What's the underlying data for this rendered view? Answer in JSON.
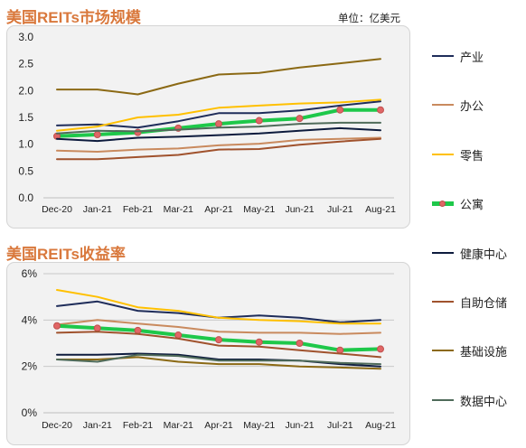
{
  "title_top": "美国REITs市场规模",
  "unit_label": "单位：亿美元",
  "title_bottom": "美国REITs收益率",
  "legend": [
    {
      "name": "产业",
      "color": "#1f2d5a"
    },
    {
      "name": "办公",
      "color": "#c98a5e"
    },
    {
      "name": "零售",
      "color": "#ffc000"
    },
    {
      "name": "公寓",
      "color": "#1ec84a"
    },
    {
      "name": "健康中心",
      "color": "#0d1b3d"
    },
    {
      "name": "自助仓储",
      "color": "#a0522d"
    },
    {
      "name": "基础设施",
      "color": "#8b6914"
    },
    {
      "name": "数据中心",
      "color": "#4f6b5a"
    }
  ],
  "chart_data": [
    {
      "type": "line",
      "title": "美国REITs市场规模",
      "categories": [
        "Dec-20",
        "Jan-21",
        "Feb-21",
        "Mar-21",
        "Apr-21",
        "May-21",
        "Jun-21",
        "Jul-21",
        "Aug-21"
      ],
      "ylim": [
        0,
        3.0
      ],
      "yticks": [
        "0.0",
        "0.5",
        "1.0",
        "1.5",
        "2.0",
        "2.5",
        "3.0"
      ],
      "grid": false,
      "series": [
        {
          "name": "产业",
          "color": "#1f2d5a",
          "width": 2,
          "values": [
            1.35,
            1.37,
            1.31,
            1.43,
            1.58,
            1.58,
            1.63,
            1.72,
            1.8
          ]
        },
        {
          "name": "办公",
          "color": "#c98a5e",
          "width": 2,
          "values": [
            0.88,
            0.86,
            0.9,
            0.92,
            0.98,
            1.01,
            1.08,
            1.1,
            1.12
          ]
        },
        {
          "name": "零售",
          "color": "#ffc000",
          "width": 2,
          "values": [
            1.25,
            1.33,
            1.5,
            1.55,
            1.68,
            1.72,
            1.76,
            1.78,
            1.83
          ]
        },
        {
          "name": "公寓",
          "color": "#1ec84a",
          "width": 4,
          "marker": true,
          "values": [
            1.15,
            1.18,
            1.22,
            1.3,
            1.38,
            1.44,
            1.48,
            1.64,
            1.64
          ]
        },
        {
          "name": "健康中心",
          "color": "#0d1b3d",
          "width": 2,
          "values": [
            1.1,
            1.06,
            1.12,
            1.14,
            1.17,
            1.2,
            1.25,
            1.3,
            1.26
          ]
        },
        {
          "name": "自助仓储",
          "color": "#a0522d",
          "width": 2,
          "values": [
            0.72,
            0.72,
            0.76,
            0.8,
            0.9,
            0.91,
            0.99,
            1.05,
            1.1
          ]
        },
        {
          "name": "基础设施",
          "color": "#8b6914",
          "width": 2,
          "values": [
            2.02,
            2.02,
            1.93,
            2.13,
            2.3,
            2.33,
            2.43,
            2.51,
            2.59
          ]
        },
        {
          "name": "数据中心",
          "color": "#4f6b5a",
          "width": 2,
          "values": [
            1.2,
            1.25,
            1.24,
            1.27,
            1.31,
            1.33,
            1.38,
            1.4,
            1.4
          ]
        }
      ]
    },
    {
      "type": "line",
      "title": "美国REITs收益率",
      "categories": [
        "Dec-20",
        "Jan-21",
        "Feb-21",
        "Mar-21",
        "Apr-21",
        "May-21",
        "Jun-21",
        "Jul-21",
        "Aug-21"
      ],
      "ylim": [
        0,
        6
      ],
      "yticks": [
        "0%",
        "2%",
        "4%",
        "6%"
      ],
      "grid": true,
      "series": [
        {
          "name": "产业",
          "color": "#1f2d5a",
          "width": 2,
          "values": [
            4.6,
            4.8,
            4.4,
            4.3,
            4.1,
            4.2,
            4.1,
            3.9,
            4.0
          ]
        },
        {
          "name": "办公",
          "color": "#c98a5e",
          "width": 2,
          "values": [
            3.8,
            4.0,
            3.85,
            3.7,
            3.5,
            3.45,
            3.45,
            3.4,
            3.45
          ]
        },
        {
          "name": "零售",
          "color": "#ffc000",
          "width": 2,
          "values": [
            5.3,
            5.0,
            4.55,
            4.4,
            4.1,
            4.0,
            3.95,
            3.85,
            3.85
          ]
        },
        {
          "name": "公寓",
          "color": "#1ec84a",
          "width": 4,
          "marker": true,
          "values": [
            3.75,
            3.65,
            3.55,
            3.35,
            3.15,
            3.05,
            3.0,
            2.7,
            2.75
          ]
        },
        {
          "name": "健康中心",
          "color": "#0d1b3d",
          "width": 2,
          "values": [
            2.5,
            2.5,
            2.55,
            2.5,
            2.3,
            2.3,
            2.25,
            2.1,
            2.0
          ]
        },
        {
          "name": "自助仓储",
          "color": "#a0522d",
          "width": 2,
          "values": [
            3.45,
            3.5,
            3.4,
            3.2,
            2.9,
            2.85,
            2.7,
            2.55,
            2.4
          ]
        },
        {
          "name": "基础设施",
          "color": "#8b6914",
          "width": 2,
          "values": [
            2.3,
            2.3,
            2.4,
            2.2,
            2.1,
            2.1,
            2.0,
            1.95,
            1.9
          ]
        },
        {
          "name": "数据中心",
          "color": "#4f6b5a",
          "width": 2,
          "values": [
            2.3,
            2.2,
            2.5,
            2.45,
            2.25,
            2.25,
            2.25,
            2.15,
            2.1
          ]
        }
      ]
    }
  ]
}
